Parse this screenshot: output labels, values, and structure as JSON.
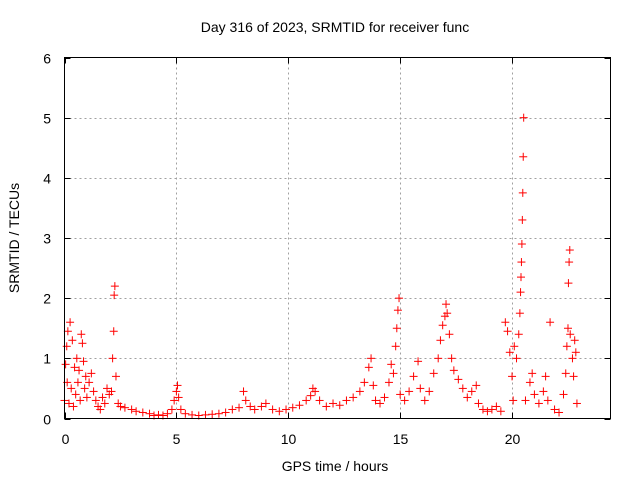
{
  "chart_data": {
    "type": "scatter",
    "title": "Day 316 of 2023, SRMTID for receiver func",
    "xlabel": "GPS time / hours",
    "ylabel": "SRMTID / TECUs",
    "xlim": [
      0,
      24.4
    ],
    "ylim": [
      0,
      6
    ],
    "x_ticks": [
      0,
      5,
      10,
      15,
      20
    ],
    "y_ticks": [
      0,
      1,
      2,
      3,
      4,
      5,
      6
    ],
    "x_tick_labels": [
      "0",
      "5",
      "10",
      "15",
      "20"
    ],
    "y_tick_labels": [
      "0",
      "1",
      "2",
      "3",
      "4",
      "5",
      "6"
    ],
    "grid": true,
    "marker": "+",
    "color": "#ff0000",
    "series": [
      {
        "name": "SRMTID",
        "points": [
          [
            0.0,
            0.3
          ],
          [
            0.05,
            0.9
          ],
          [
            0.1,
            1.2
          ],
          [
            0.12,
            0.6
          ],
          [
            0.15,
            1.45
          ],
          [
            0.2,
            0.25
          ],
          [
            0.25,
            1.6
          ],
          [
            0.3,
            0.5
          ],
          [
            0.35,
            1.3
          ],
          [
            0.4,
            0.2
          ],
          [
            0.45,
            0.85
          ],
          [
            0.5,
            0.4
          ],
          [
            0.55,
            1.0
          ],
          [
            0.6,
            0.6
          ],
          [
            0.65,
            0.8
          ],
          [
            0.7,
            0.3
          ],
          [
            0.75,
            1.4
          ],
          [
            0.8,
            1.25
          ],
          [
            0.85,
            0.95
          ],
          [
            0.9,
            0.5
          ],
          [
            0.95,
            0.7
          ],
          [
            1.0,
            0.35
          ],
          [
            1.1,
            0.6
          ],
          [
            1.2,
            0.75
          ],
          [
            1.3,
            0.45
          ],
          [
            1.4,
            0.3
          ],
          [
            1.5,
            0.2
          ],
          [
            1.6,
            0.15
          ],
          [
            1.7,
            0.35
          ],
          [
            1.8,
            0.25
          ],
          [
            1.9,
            0.5
          ],
          [
            2.0,
            0.4
          ],
          [
            2.1,
            0.45
          ],
          [
            2.15,
            1.0
          ],
          [
            2.2,
            1.45
          ],
          [
            2.22,
            2.05
          ],
          [
            2.25,
            2.2
          ],
          [
            2.3,
            0.7
          ],
          [
            2.4,
            0.25
          ],
          [
            2.5,
            0.2
          ],
          [
            2.7,
            0.18
          ],
          [
            3.0,
            0.15
          ],
          [
            3.2,
            0.12
          ],
          [
            3.5,
            0.1
          ],
          [
            3.8,
            0.08
          ],
          [
            4.0,
            0.05
          ],
          [
            4.2,
            0.06
          ],
          [
            4.4,
            0.05
          ],
          [
            4.6,
            0.08
          ],
          [
            4.8,
            0.15
          ],
          [
            4.9,
            0.3
          ],
          [
            5.0,
            0.45
          ],
          [
            5.05,
            0.55
          ],
          [
            5.1,
            0.35
          ],
          [
            5.2,
            0.15
          ],
          [
            5.4,
            0.08
          ],
          [
            5.7,
            0.06
          ],
          [
            6.0,
            0.05
          ],
          [
            6.3,
            0.06
          ],
          [
            6.6,
            0.07
          ],
          [
            6.9,
            0.08
          ],
          [
            7.2,
            0.1
          ],
          [
            7.5,
            0.15
          ],
          [
            7.8,
            0.18
          ],
          [
            8.0,
            0.45
          ],
          [
            8.1,
            0.3
          ],
          [
            8.3,
            0.2
          ],
          [
            8.5,
            0.15
          ],
          [
            8.8,
            0.2
          ],
          [
            9.0,
            0.25
          ],
          [
            9.3,
            0.15
          ],
          [
            9.6,
            0.12
          ],
          [
            9.9,
            0.15
          ],
          [
            10.2,
            0.18
          ],
          [
            10.5,
            0.22
          ],
          [
            10.8,
            0.3
          ],
          [
            11.0,
            0.38
          ],
          [
            11.1,
            0.5
          ],
          [
            11.2,
            0.45
          ],
          [
            11.4,
            0.3
          ],
          [
            11.7,
            0.2
          ],
          [
            12.0,
            0.25
          ],
          [
            12.3,
            0.22
          ],
          [
            12.6,
            0.3
          ],
          [
            12.9,
            0.35
          ],
          [
            13.2,
            0.45
          ],
          [
            13.4,
            0.6
          ],
          [
            13.6,
            0.85
          ],
          [
            13.7,
            1.0
          ],
          [
            13.8,
            0.55
          ],
          [
            13.9,
            0.3
          ],
          [
            14.1,
            0.25
          ],
          [
            14.3,
            0.35
          ],
          [
            14.5,
            0.6
          ],
          [
            14.6,
            0.9
          ],
          [
            14.7,
            0.75
          ],
          [
            14.8,
            1.2
          ],
          [
            14.85,
            1.5
          ],
          [
            14.9,
            1.8
          ],
          [
            14.95,
            2.0
          ],
          [
            15.0,
            0.4
          ],
          [
            15.2,
            0.3
          ],
          [
            15.4,
            0.45
          ],
          [
            15.6,
            0.7
          ],
          [
            15.8,
            0.95
          ],
          [
            15.9,
            0.5
          ],
          [
            16.1,
            0.3
          ],
          [
            16.3,
            0.45
          ],
          [
            16.5,
            0.75
          ],
          [
            16.7,
            1.0
          ],
          [
            16.8,
            1.3
          ],
          [
            16.9,
            1.55
          ],
          [
            17.0,
            1.7
          ],
          [
            17.05,
            1.9
          ],
          [
            17.1,
            1.75
          ],
          [
            17.2,
            1.4
          ],
          [
            17.3,
            1.0
          ],
          [
            17.4,
            0.8
          ],
          [
            17.6,
            0.65
          ],
          [
            17.8,
            0.5
          ],
          [
            18.0,
            0.35
          ],
          [
            18.2,
            0.45
          ],
          [
            18.4,
            0.55
          ],
          [
            18.5,
            0.25
          ],
          [
            18.7,
            0.15
          ],
          [
            18.9,
            0.12
          ],
          [
            19.1,
            0.15
          ],
          [
            19.3,
            0.2
          ],
          [
            19.5,
            0.12
          ],
          [
            19.7,
            1.6
          ],
          [
            19.8,
            1.45
          ],
          [
            19.9,
            1.1
          ],
          [
            20.0,
            0.7
          ],
          [
            20.05,
            0.3
          ],
          [
            20.1,
            1.2
          ],
          [
            20.2,
            1.0
          ],
          [
            20.3,
            1.4
          ],
          [
            20.35,
            1.75
          ],
          [
            20.38,
            2.1
          ],
          [
            20.4,
            2.35
          ],
          [
            20.42,
            2.6
          ],
          [
            20.44,
            2.9
          ],
          [
            20.46,
            3.3
          ],
          [
            20.48,
            3.75
          ],
          [
            20.5,
            4.35
          ],
          [
            20.52,
            5.0
          ],
          [
            20.6,
            0.3
          ],
          [
            20.8,
            0.6
          ],
          [
            20.9,
            0.75
          ],
          [
            21.0,
            0.4
          ],
          [
            21.2,
            0.25
          ],
          [
            21.4,
            0.45
          ],
          [
            21.5,
            0.7
          ],
          [
            21.6,
            0.3
          ],
          [
            21.7,
            1.6
          ],
          [
            21.9,
            0.15
          ],
          [
            22.1,
            0.1
          ],
          [
            22.3,
            0.4
          ],
          [
            22.4,
            0.75
          ],
          [
            22.45,
            1.2
          ],
          [
            22.5,
            1.5
          ],
          [
            22.52,
            2.25
          ],
          [
            22.55,
            2.6
          ],
          [
            22.58,
            2.8
          ],
          [
            22.6,
            1.4
          ],
          [
            22.7,
            1.0
          ],
          [
            22.75,
            0.7
          ],
          [
            22.8,
            1.3
          ],
          [
            22.85,
            1.1
          ],
          [
            22.9,
            0.25
          ]
        ]
      }
    ]
  }
}
